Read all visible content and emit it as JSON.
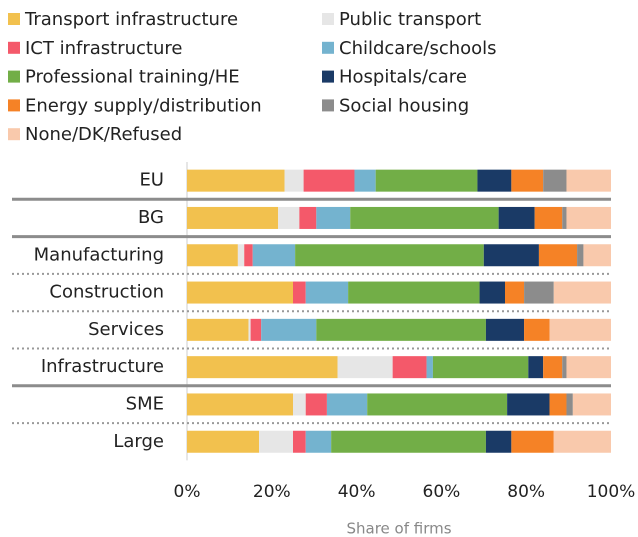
{
  "chart_data": {
    "type": "stacked-bar-horizontal",
    "categories": [
      "EU",
      "BG",
      "Manufacturing",
      "Construction",
      "Services",
      "Infrastructure",
      "SME",
      "Large"
    ],
    "series": [
      {
        "name": "Transport infrastructure",
        "color": "#f2c14e",
        "values": [
          23,
          21.5,
          12,
          25,
          14.5,
          35.5,
          25,
          17
        ]
      },
      {
        "name": "Public transport",
        "color": "#e6e6e6",
        "values": [
          4.5,
          5,
          1.5,
          0,
          0.5,
          13,
          3,
          8
        ]
      },
      {
        "name": "ICT infrastructure",
        "color": "#f4596a",
        "values": [
          12,
          4,
          2,
          3,
          2.5,
          8,
          5,
          3
        ]
      },
      {
        "name": "Childcare/schools",
        "color": "#74b3cf",
        "values": [
          5,
          8,
          10,
          10,
          13,
          1.5,
          9.5,
          6
        ]
      },
      {
        "name": "Professional training/HE",
        "color": "#72ae47",
        "values": [
          24,
          35,
          44.5,
          31,
          40,
          22.5,
          33,
          36.5
        ]
      },
      {
        "name": "Hospitals/care",
        "color": "#1a3a66",
        "values": [
          8,
          8.5,
          13,
          6,
          9,
          3.5,
          10,
          6
        ]
      },
      {
        "name": "Energy supply/distribution",
        "color": "#f58226",
        "values": [
          7.5,
          6.5,
          9,
          4.5,
          6,
          4.5,
          4,
          10
        ]
      },
      {
        "name": "Social housing",
        "color": "#8c8c8c",
        "values": [
          5.5,
          1,
          1.5,
          7,
          0,
          1,
          1.5,
          0
        ]
      },
      {
        "name": "None/DK/Refused",
        "color": "#f9c9ac",
        "values": [
          10.5,
          10.5,
          6.5,
          13.5,
          14.5,
          10.5,
          9,
          13.5
        ]
      }
    ],
    "xlim": [
      0,
      100
    ],
    "xticks": [
      {
        "value": 0,
        "label": "0%"
      },
      {
        "value": 20,
        "label": "20%"
      },
      {
        "value": 40,
        "label": "40%"
      },
      {
        "value": 60,
        "label": "60%"
      },
      {
        "value": 80,
        "label": "80%"
      },
      {
        "value": 100,
        "label": "100%"
      }
    ],
    "xlabel": "Share of firms"
  }
}
